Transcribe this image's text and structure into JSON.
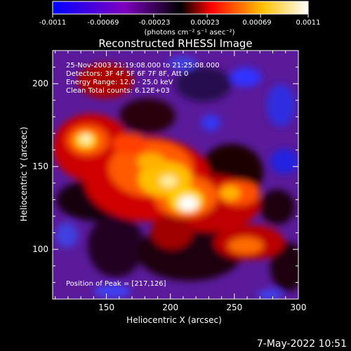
{
  "colorbar": {
    "ticks": [
      "-0.0011",
      "-0.00069",
      "-0.00023",
      "0.00023",
      "0.00069",
      "0.0011"
    ],
    "units": "(photons cm⁻² s⁻¹ asec⁻²)"
  },
  "plot": {
    "title": "Reconstructed RHESSI Image",
    "info_lines": [
      "25-Nov-2003 21:19:08.000 to 21:25:08.000",
      "Detectors: 3F 4F 5F 6F 7F 8F, Att 0",
      "Energy Range: 12.0 - 25.0 keV",
      "Clean     Total counts: 6.12E+03"
    ],
    "peak_text": "Position of Peak = [217,126]"
  },
  "footer_date": "7-May-2022 10:51",
  "chart_data": {
    "type": "heatmap",
    "title": "Reconstructed RHESSI Image",
    "xlabel": "Heliocentric X (arcsec)",
    "ylabel": "Heliocentric Y (arcsec)",
    "xlim": [
      108,
      300
    ],
    "ylim": [
      70,
      220
    ],
    "xticks": [
      150,
      200,
      250,
      300
    ],
    "yticks": [
      100,
      150,
      200
    ],
    "value_range": [
      -0.0011,
      0.0011
    ],
    "peak_position": [
      217,
      126
    ],
    "colormap": [
      "#0000ff",
      "#7f00bf",
      "#000000",
      "#ff0000",
      "#ffc000",
      "#ffffff"
    ]
  }
}
